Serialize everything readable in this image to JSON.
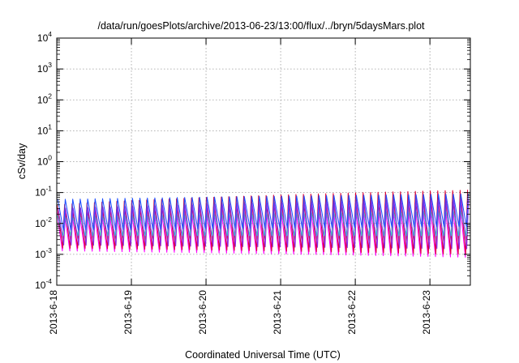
{
  "chart_data": {
    "type": "line",
    "title": "/data/run/goesPlots/archive/2013-06-23/13:00/flux/../bryn/5daysMars.plot",
    "xlabel": "Coordinated Universal Time (UTC)",
    "ylabel": "cSv/day",
    "yscale": "log",
    "ylim": [
      0.0001,
      10000
    ],
    "ytick_values": [
      0.0001,
      0.001,
      0.01,
      0.1,
      1,
      10,
      100,
      1000,
      10000
    ],
    "ytick_labels": [
      {
        "base": "10",
        "exp": "-4"
      },
      {
        "base": "10",
        "exp": "-3"
      },
      {
        "base": "10",
        "exp": "-2"
      },
      {
        "base": "10",
        "exp": "-1"
      },
      {
        "base": "10",
        "exp": "0"
      },
      {
        "base": "10",
        "exp": "1"
      },
      {
        "base": "10",
        "exp": "2"
      },
      {
        "base": "10",
        "exp": "3"
      },
      {
        "base": "10",
        "exp": "4"
      }
    ],
    "xlim": [
      "2013-06-18T00:00",
      "2013-06-23T13:00"
    ],
    "xtick_values": [
      "2013-06-18",
      "2013-06-19",
      "2013-06-20",
      "2013-06-21",
      "2013-06-22",
      "2013-06-23"
    ],
    "xtick_labels": [
      "2013-6-18",
      "2013-6-19",
      "2013-6-20",
      "2013-6-21",
      "2013-6-22",
      "2013-6-23"
    ],
    "grid": true,
    "legend": "none",
    "pattern": {
      "kind": "sawtooth",
      "spikes_per_day": 10,
      "trough_time_offset_hours": -0.6
    },
    "series": [
      {
        "color": "#ff00ff",
        "peak_first_day": 0.025,
        "peak_last_day": 0.05,
        "trough_first_day": 0.0013,
        "trough_last_day": 0.0008
      },
      {
        "color": "#dd0033",
        "peak_first_day": 0.04,
        "peak_last_day": 0.12,
        "trough_first_day": 0.0016,
        "trough_last_day": 0.001
      },
      {
        "color": "#2dd0c8",
        "peak_first_day": 0.018,
        "peak_last_day": 0.03,
        "trough_first_day": 0.004,
        "trough_last_day": 0.004
      },
      {
        "color": "#1f50ff",
        "peak_first_day": 0.06,
        "peak_last_day": 0.09,
        "trough_first_day": 0.006,
        "trough_last_day": 0.008
      },
      {
        "color": "#8a2be2",
        "peak_first_day": 0.03,
        "peak_last_day": 0.06,
        "trough_first_day": 0.002,
        "trough_last_day": 0.0015
      }
    ]
  }
}
